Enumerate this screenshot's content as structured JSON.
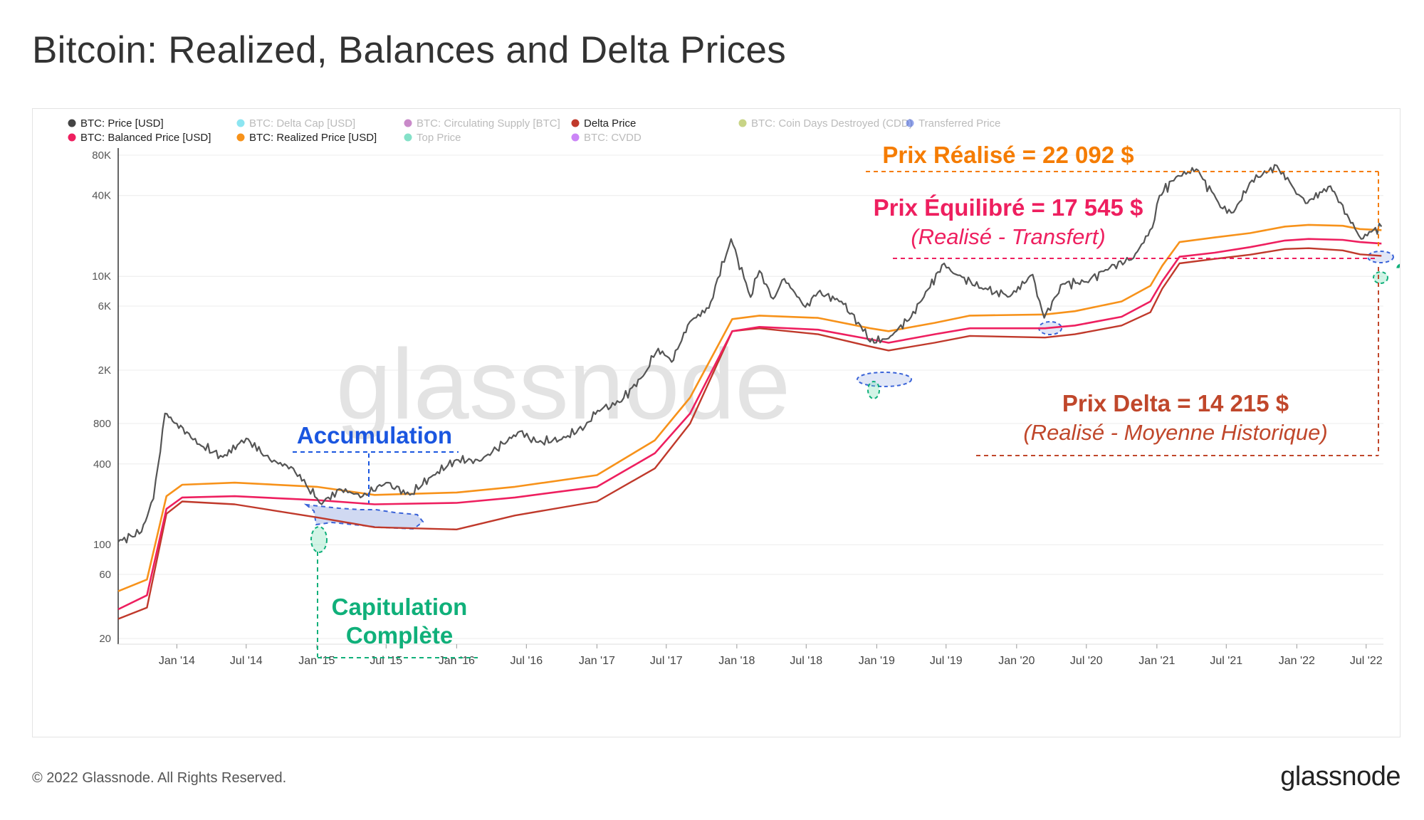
{
  "title": "Bitcoin: Realized, Balances and Delta Prices",
  "footer": "© 2022 Glassnode. All Rights Reserved.",
  "brand": "glassnode",
  "watermark": "glassnode",
  "chart_data": {
    "type": "line",
    "y_scale": "log",
    "ylim": [
      20,
      80000
    ],
    "y_ticks": [
      {
        "label": "80K",
        "value": 80000
      },
      {
        "label": "40K",
        "value": 40000
      },
      {
        "label": "10K",
        "value": 10000
      },
      {
        "label": "6K",
        "value": 6000
      },
      {
        "label": "2K",
        "value": 2000
      },
      {
        "label": "800",
        "value": 800
      },
      {
        "label": "400",
        "value": 400
      },
      {
        "label": "100",
        "value": 100
      },
      {
        "label": "60",
        "value": 60
      },
      {
        "label": "20",
        "value": 20
      }
    ],
    "x_ticks": [
      "Jan '14",
      "Jul '14",
      "Jan '15",
      "Jul '15",
      "Jan '16",
      "Jul '16",
      "Jan '17",
      "Jul '17",
      "Jan '18",
      "Jul '18",
      "Jan '19",
      "Jul '19",
      "Jan '20",
      "Jul '20",
      "Jan '21",
      "Jul '21",
      "Jan '22",
      "Jul '22"
    ],
    "x_range": [
      "2013-08-01",
      "2022-08-15"
    ],
    "legend": [
      {
        "label": "BTC: Price [USD]",
        "color": "#444444",
        "active": true
      },
      {
        "label": "BTC: Delta Cap [USD]",
        "color": "#2ecfe6",
        "active": false
      },
      {
        "label": "BTC: Circulating Supply [BTC]",
        "color": "#9c2a9c",
        "active": false
      },
      {
        "label": "Delta Price",
        "color": "#c0392b",
        "active": true
      },
      {
        "label": "BTC: Coin Days Destroyed (CDD)",
        "color": "#9ab023",
        "active": false
      },
      {
        "label": "Transferred Price",
        "color": "#3a5bdc",
        "active": false
      },
      {
        "label": "BTC: Balanced Price [USD]",
        "color": "#ee1f5f",
        "active": true
      },
      {
        "label": "BTC: Realized Price [USD]",
        "color": "#f7921a",
        "active": true
      },
      {
        "label": "Top Price",
        "color": "#1fc89b",
        "active": false
      },
      {
        "label": "BTC: CVDD",
        "color": "#a020f0",
        "active": false
      }
    ],
    "series": [
      {
        "name": "BTC: Price [USD]",
        "color": "#555555",
        "x": [
          "2013-08-01",
          "2013-10-01",
          "2013-11-01",
          "2013-12-01",
          "2014-01-01",
          "2014-03-01",
          "2014-05-01",
          "2014-07-01",
          "2014-09-01",
          "2014-11-01",
          "2015-01-14",
          "2015-03-01",
          "2015-05-01",
          "2015-07-01",
          "2015-09-01",
          "2015-11-01",
          "2016-01-01",
          "2016-03-01",
          "2016-06-15",
          "2016-08-01",
          "2016-10-01",
          "2016-12-01",
          "2017-01-03",
          "2017-03-01",
          "2017-05-01",
          "2017-06-10",
          "2017-07-15",
          "2017-09-01",
          "2017-10-20",
          "2017-12-17",
          "2018-02-06",
          "2018-03-01",
          "2018-04-06",
          "2018-05-05",
          "2018-06-29",
          "2018-08-01",
          "2018-10-01",
          "2018-11-20",
          "2018-12-15",
          "2019-02-01",
          "2019-04-01",
          "2019-05-15",
          "2019-06-26",
          "2019-08-01",
          "2019-10-01",
          "2019-12-15",
          "2020-02-12",
          "2020-03-13",
          "2020-05-01",
          "2020-07-01",
          "2020-09-01",
          "2020-11-01",
          "2020-12-20",
          "2021-01-08",
          "2021-02-20",
          "2021-04-14",
          "2021-06-22",
          "2021-07-20",
          "2021-09-06",
          "2021-10-20",
          "2021-11-10",
          "2021-12-20",
          "2022-01-24",
          "2022-03-30",
          "2022-05-12",
          "2022-06-18",
          "2022-07-15",
          "2022-08-10"
        ],
        "values": [
          105,
          125,
          220,
          950,
          800,
          560,
          450,
          620,
          430,
          370,
          200,
          260,
          230,
          290,
          235,
          330,
          430,
          420,
          700,
          580,
          610,
          760,
          1000,
          1150,
          1800,
          2900,
          2300,
          4600,
          5800,
          19000,
          7000,
          11000,
          6800,
          9600,
          5900,
          7600,
          6500,
          4300,
          3250,
          3450,
          5000,
          8000,
          12500,
          10200,
          8200,
          7100,
          10300,
          4900,
          8800,
          9100,
          11700,
          13700,
          23000,
          40000,
          55000,
          63000,
          32000,
          30000,
          52000,
          61000,
          67000,
          47000,
          35000,
          47000,
          29000,
          19000,
          21500,
          23500
        ]
      },
      {
        "name": "BTC: Realized Price [USD]",
        "color": "#f7921a",
        "x": [
          "2013-08-01",
          "2013-10-15",
          "2013-12-05",
          "2014-01-15",
          "2014-06-01",
          "2015-01-01",
          "2015-06-01",
          "2016-01-01",
          "2016-06-01",
          "2017-01-01",
          "2017-06-01",
          "2017-09-01",
          "2017-12-20",
          "2018-03-01",
          "2018-08-01",
          "2018-12-15",
          "2019-02-01",
          "2019-06-01",
          "2019-09-01",
          "2020-03-15",
          "2020-06-01",
          "2020-10-01",
          "2020-12-15",
          "2021-01-15",
          "2021-03-01",
          "2021-06-01",
          "2021-09-01",
          "2021-12-01",
          "2022-02-01",
          "2022-05-01",
          "2022-06-15",
          "2022-08-10"
        ],
        "values": [
          45,
          55,
          230,
          280,
          290,
          270,
          235,
          245,
          270,
          330,
          600,
          1250,
          4800,
          5100,
          4900,
          4100,
          3900,
          4500,
          5100,
          5200,
          5500,
          6500,
          8500,
          12000,
          18000,
          19500,
          21000,
          23500,
          24200,
          23800,
          22500,
          22092
        ]
      },
      {
        "name": "BTC: Balanced Price [USD]",
        "color": "#ee1f5f",
        "x": [
          "2013-08-01",
          "2013-10-15",
          "2013-12-05",
          "2014-01-15",
          "2014-06-01",
          "2015-01-01",
          "2015-06-01",
          "2016-01-01",
          "2016-06-01",
          "2017-01-01",
          "2017-06-01",
          "2017-09-01",
          "2017-12-20",
          "2018-03-01",
          "2018-08-01",
          "2018-12-15",
          "2019-02-01",
          "2019-06-01",
          "2019-09-01",
          "2020-03-15",
          "2020-06-01",
          "2020-10-01",
          "2020-12-15",
          "2021-01-15",
          "2021-03-01",
          "2021-06-01",
          "2021-09-01",
          "2021-12-01",
          "2022-02-01",
          "2022-05-01",
          "2022-06-15",
          "2022-08-10"
        ],
        "values": [
          33,
          42,
          185,
          225,
          230,
          215,
          200,
          205,
          225,
          270,
          480,
          950,
          3900,
          4200,
          4000,
          3400,
          3200,
          3700,
          4100,
          4100,
          4300,
          5000,
          6500,
          9200,
          14000,
          15000,
          16500,
          18500,
          19000,
          18700,
          18000,
          17545
        ]
      },
      {
        "name": "Delta Price",
        "color": "#c0392b",
        "x": [
          "2013-08-01",
          "2013-10-15",
          "2013-12-05",
          "2014-01-15",
          "2014-06-01",
          "2015-01-01",
          "2015-06-01",
          "2016-01-01",
          "2016-06-01",
          "2017-01-01",
          "2017-06-01",
          "2017-09-01",
          "2017-12-20",
          "2018-03-01",
          "2018-08-01",
          "2018-12-15",
          "2019-02-01",
          "2019-06-01",
          "2019-09-01",
          "2020-03-15",
          "2020-06-01",
          "2020-10-01",
          "2020-12-15",
          "2021-01-15",
          "2021-03-01",
          "2021-06-01",
          "2021-09-01",
          "2021-12-01",
          "2022-02-01",
          "2022-05-01",
          "2022-06-15",
          "2022-08-10"
        ],
        "values": [
          28,
          34,
          170,
          210,
          200,
          160,
          135,
          130,
          165,
          210,
          370,
          800,
          3900,
          4100,
          3700,
          3000,
          2800,
          3200,
          3600,
          3500,
          3700,
          4300,
          5400,
          8100,
          12500,
          13500,
          14500,
          16000,
          16200,
          15600,
          14600,
          14215
        ]
      }
    ],
    "annotations": {
      "accumulation": "Accumulation",
      "capitulation_1": "Capitulation",
      "capitulation_2": "Complète",
      "realized": "Prix Réalisé = 22 092 $",
      "balanced": "Prix Équilibré = 17 545 $",
      "balanced_sub": "(Realisé - Transfert)",
      "delta": "Prix Delta = 14 215 $",
      "delta_sub": "(Realisé - Moyenne Historique)",
      "question": "?"
    },
    "annotation_colors": {
      "accumulation": "#1a56e0",
      "capitulation": "#10b07a",
      "realized": "#f57c00",
      "balanced": "#ee1f5f",
      "delta": "#c0472b"
    }
  }
}
